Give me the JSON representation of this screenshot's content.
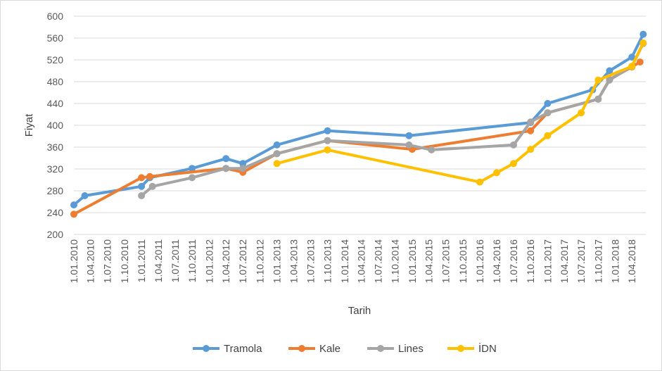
{
  "chart_data": {
    "type": "line",
    "xlabel": "Tarih",
    "ylabel": "Fiyat",
    "ylim": [
      200,
      600
    ],
    "yticks": [
      200,
      240,
      280,
      320,
      360,
      400,
      440,
      480,
      520,
      560,
      600
    ],
    "xlim": [
      "2010-01-01",
      "2018-06-15"
    ],
    "xticks": [
      {
        "date": "2010-01-01",
        "label": "1.01.2010"
      },
      {
        "date": "2010-04-01",
        "label": "1.04.2010"
      },
      {
        "date": "2010-07-01",
        "label": "1.07.2010"
      },
      {
        "date": "2010-10-01",
        "label": "1.10.2010"
      },
      {
        "date": "2011-01-01",
        "label": "1.01.2011"
      },
      {
        "date": "2011-04-01",
        "label": "1.04.2011"
      },
      {
        "date": "2011-07-01",
        "label": "1.07.2011"
      },
      {
        "date": "2011-10-01",
        "label": "1.10.2011"
      },
      {
        "date": "2012-01-01",
        "label": "1.01.2012"
      },
      {
        "date": "2012-04-01",
        "label": "1.04.2012"
      },
      {
        "date": "2012-07-01",
        "label": "1.07.2012"
      },
      {
        "date": "2012-10-01",
        "label": "1.10.2012"
      },
      {
        "date": "2013-01-01",
        "label": "1.01.2013"
      },
      {
        "date": "2013-04-01",
        "label": "1.04.2013"
      },
      {
        "date": "2013-07-01",
        "label": "1.07.2013"
      },
      {
        "date": "2013-10-01",
        "label": "1.10.2013"
      },
      {
        "date": "2014-01-01",
        "label": "1.01.2014"
      },
      {
        "date": "2014-04-01",
        "label": "1.04.2014"
      },
      {
        "date": "2014-07-01",
        "label": "1.07.2014"
      },
      {
        "date": "2014-10-01",
        "label": "1.10.2014"
      },
      {
        "date": "2015-01-01",
        "label": "1.01.2015"
      },
      {
        "date": "2015-04-01",
        "label": "1.04.2015"
      },
      {
        "date": "2015-07-01",
        "label": "1.07.2015"
      },
      {
        "date": "2015-10-01",
        "label": "1.10.2015"
      },
      {
        "date": "2016-01-01",
        "label": "1.01.2016"
      },
      {
        "date": "2016-04-01",
        "label": "1.04.2016"
      },
      {
        "date": "2016-07-01",
        "label": "1.07.2016"
      },
      {
        "date": "2016-10-01",
        "label": "1.10.2016"
      },
      {
        "date": "2017-01-01",
        "label": "1.01.2017"
      },
      {
        "date": "2017-04-01",
        "label": "1.04.2017"
      },
      {
        "date": "2017-07-01",
        "label": "1.07.2017"
      },
      {
        "date": "2017-10-01",
        "label": "1.10.2017"
      },
      {
        "date": "2018-01-01",
        "label": "1.01.2018"
      },
      {
        "date": "2018-04-01",
        "label": "1.04.2018"
      }
    ],
    "grid": true,
    "legend": "bottom",
    "series": [
      {
        "name": "Tramola",
        "color": "#5b9bd5",
        "points": [
          [
            "2010-01-01",
            254
          ],
          [
            "2010-03-01",
            271
          ],
          [
            "2011-01-01",
            288
          ],
          [
            "2011-02-15",
            304
          ],
          [
            "2011-10-01",
            321
          ],
          [
            "2012-04-01",
            339
          ],
          [
            "2012-07-01",
            330
          ],
          [
            "2013-01-01",
            364
          ],
          [
            "2013-10-01",
            390
          ],
          [
            "2014-12-15",
            381
          ],
          [
            "2016-10-01",
            405
          ],
          [
            "2017-01-01",
            440
          ],
          [
            "2017-09-01",
            465
          ],
          [
            "2017-12-01",
            500
          ],
          [
            "2018-04-01",
            525
          ],
          [
            "2018-06-01",
            567
          ]
        ]
      },
      {
        "name": "Kale",
        "color": "#ed7d31",
        "points": [
          [
            "2010-01-01",
            237
          ],
          [
            "2011-01-01",
            304
          ],
          [
            "2011-02-15",
            306
          ],
          [
            "2012-04-01",
            321
          ],
          [
            "2012-07-01",
            314
          ],
          [
            "2013-01-01",
            348
          ],
          [
            "2013-10-01",
            372
          ],
          [
            "2015-01-01",
            356
          ],
          [
            "2016-10-01",
            390
          ],
          [
            "2017-01-01",
            423
          ],
          [
            "2017-10-01",
            448
          ],
          [
            "2017-12-01",
            484
          ],
          [
            "2018-04-01",
            507
          ],
          [
            "2018-05-15",
            516
          ]
        ]
      },
      {
        "name": "Lines",
        "color": "#a5a5a5",
        "points": [
          [
            "2011-01-01",
            271
          ],
          [
            "2011-03-01",
            288
          ],
          [
            "2011-10-01",
            304
          ],
          [
            "2012-04-01",
            321
          ],
          [
            "2012-07-01",
            321
          ],
          [
            "2013-01-01",
            348
          ],
          [
            "2013-10-01",
            372
          ],
          [
            "2014-12-15",
            364
          ],
          [
            "2015-04-15",
            355
          ],
          [
            "2016-07-01",
            364
          ],
          [
            "2016-10-01",
            406
          ],
          [
            "2017-01-01",
            423
          ],
          [
            "2017-10-01",
            448
          ],
          [
            "2017-12-01",
            483
          ],
          [
            "2018-04-01",
            508
          ],
          [
            "2018-06-01",
            550
          ]
        ]
      },
      {
        "name": "İDN",
        "color": "#ffc000",
        "points": [
          [
            "2013-01-01",
            330
          ],
          [
            "2013-10-01",
            355
          ],
          [
            "2016-01-01",
            296
          ],
          [
            "2016-04-01",
            313
          ],
          [
            "2016-07-01",
            330
          ],
          [
            "2016-10-01",
            356
          ],
          [
            "2017-01-01",
            381
          ],
          [
            "2017-07-01",
            423
          ],
          [
            "2017-10-01",
            483
          ],
          [
            "2018-04-01",
            508
          ],
          [
            "2018-06-01",
            551
          ]
        ]
      }
    ]
  }
}
